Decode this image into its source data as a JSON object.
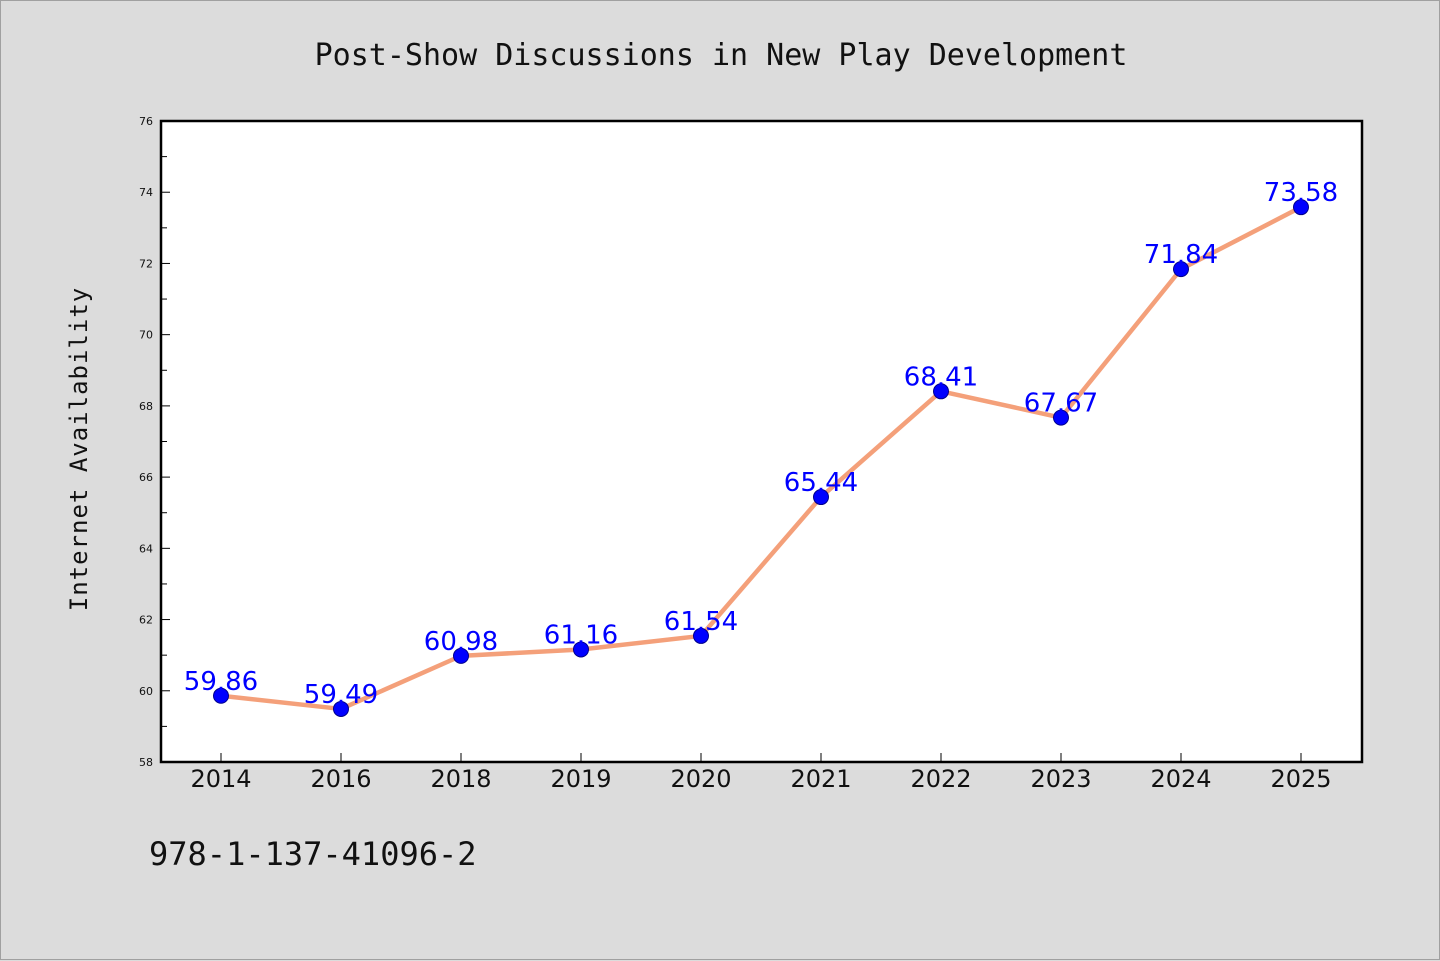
{
  "chart_data": {
    "type": "line",
    "title": "Post-Show Discussions in New Play Development",
    "xlabel": "",
    "ylabel": "Internet Availability",
    "categories": [
      "2014",
      "2016",
      "2018",
      "2019",
      "2020",
      "2021",
      "2022",
      "2023",
      "2024",
      "2025"
    ],
    "series": [
      {
        "values": [
          59.86,
          59.49,
          60.98,
          61.16,
          61.54,
          65.44,
          68.41,
          67.67,
          71.84,
          73.58
        ],
        "line_color": "#f4a07a",
        "marker_color": "#0000ff"
      }
    ],
    "data_labels": [
      "59.86",
      "59.49",
      "60.98",
      "61.16",
      "61.54",
      "65.44",
      "68.41",
      "67.67",
      "71.84",
      "73.58"
    ],
    "ylim": [
      58,
      76
    ],
    "yticks": [
      "58",
      "60",
      "62",
      "64",
      "66",
      "68",
      "70",
      "72",
      "74",
      "76"
    ],
    "grid": false,
    "legend": "none"
  },
  "footer": {
    "isbn": "978-1-137-41096-2"
  },
  "colors": {
    "background": "#dcdcdc",
    "plot_background": "#ffffff",
    "line": "#f4a07a",
    "marker": "#0000ff",
    "label": "#0000ff"
  }
}
